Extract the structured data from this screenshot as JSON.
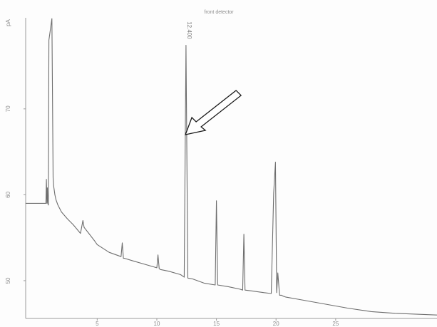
{
  "chart_data": {
    "type": "line",
    "title": "front detector",
    "ylabel": "pA",
    "xlabel": "",
    "xlim": [
      -1.0,
      33.5
    ],
    "ylim": [
      45.6,
      80.6
    ],
    "x_ticks": [
      5,
      10,
      15,
      20,
      25
    ],
    "x_tick_labels": [
      "5",
      "10",
      "15",
      "20",
      "25"
    ],
    "y_ticks": [
      50,
      60,
      70
    ],
    "y_tick_labels": [
      "50",
      "60",
      "70"
    ],
    "grid": false,
    "series": [
      {
        "color": "#6e6e6e",
        "x": [
          -1.0,
          0.7,
          0.74,
          0.78,
          0.82,
          0.86,
          0.9,
          0.95,
          1.2,
          1.3,
          1.35,
          1.45,
          1.55,
          1.7,
          2.0,
          2.5,
          3.0,
          3.6,
          3.8,
          3.9,
          4.3,
          4.8,
          5.0,
          6.0,
          7.0,
          7.1,
          7.2,
          7.3,
          8.0,
          9.0,
          10.0,
          10.1,
          10.2,
          10.3,
          11.0,
          12.0,
          12.3,
          12.45,
          12.6,
          13.0,
          14.0,
          14.9,
          15.0,
          15.1,
          16.0,
          17.0,
          17.2,
          17.3,
          17.4,
          18.0,
          19.0,
          19.6,
          19.8,
          19.95,
          20.05,
          20.15,
          20.3,
          20.45,
          20.6,
          20.8,
          22.0,
          24.0,
          26.0,
          28.0,
          30.0,
          33.5
        ],
        "y": [
          59.0,
          59.0,
          61.8,
          59.0,
          60.8,
          59.0,
          58.8,
          78.0,
          80.5,
          62.0,
          61.0,
          60.0,
          59.4,
          58.8,
          58.0,
          57.2,
          56.5,
          55.5,
          57.0,
          56.2,
          55.5,
          54.6,
          54.2,
          53.3,
          52.8,
          54.4,
          52.6,
          52.6,
          52.3,
          51.9,
          51.5,
          53.0,
          51.4,
          51.3,
          51.1,
          50.7,
          50.4,
          77.4,
          50.3,
          50.2,
          49.7,
          49.5,
          59.3,
          49.5,
          49.3,
          49.0,
          48.9,
          55.4,
          48.9,
          48.8,
          48.6,
          48.5,
          60.2,
          63.8,
          48.6,
          50.9,
          48.3,
          48.3,
          48.2,
          48.1,
          47.8,
          47.3,
          46.8,
          46.4,
          46.2,
          46.0
        ]
      }
    ],
    "annotations": [
      {
        "text": "12.400",
        "x": 12.4,
        "y": 80.5
      },
      {
        "text": "",
        "type": "arrow",
        "x": 12.4,
        "y": 67.0
      }
    ]
  }
}
